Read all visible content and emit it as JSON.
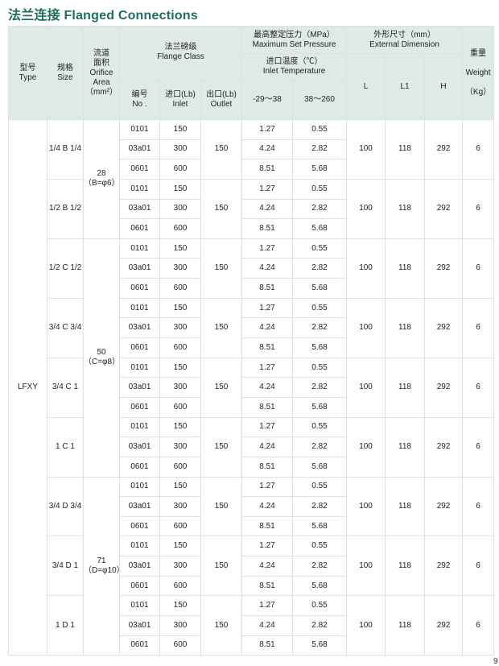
{
  "title": "法兰连接 Flanged  Connections",
  "page_number": "9",
  "header": {
    "type": [
      "型号",
      "Type"
    ],
    "size": [
      "规格",
      "Size"
    ],
    "orifice": [
      "流道",
      "面积",
      "Orifice",
      "Area",
      "（mm²）"
    ],
    "flange_class": [
      "法兰磅级",
      "Flange  Class"
    ],
    "no": [
      "编号",
      "No ."
    ],
    "inlet": [
      "进口(Lb)",
      "Inlet"
    ],
    "outlet": [
      "出口(Lb)",
      "Outlet"
    ],
    "pressure": [
      "最高整定压力（MPa）",
      "Maximum Set Pressure"
    ],
    "inlet_temp": [
      "进口温度（℃）",
      "Inlet Temperature"
    ],
    "temp1": "-29～38",
    "temp2": "38～260",
    "dimension": [
      "外形尺寸（mm）",
      "External Dimension"
    ],
    "L": "L",
    "L1": "L1",
    "H": "H",
    "weight": [
      "重量",
      "Weight",
      "（Kg）"
    ]
  },
  "type_value": "LFXY",
  "orifice_groups": [
    {
      "area": [
        "28",
        "（B=φ6）"
      ],
      "sizes": 2
    },
    {
      "area": [
        "50",
        "（C=φ8）"
      ],
      "sizes": 4
    },
    {
      "area": [
        "71",
        "（D=φ10）"
      ],
      "sizes": 3
    }
  ],
  "sizes": [
    {
      "size": "1/4 B 1/4",
      "outlet": "150",
      "L": "100",
      "L1": "118",
      "H": "292",
      "weight": "6"
    },
    {
      "size": "1/2 B 1/2",
      "outlet": "150",
      "L": "100",
      "L1": "118",
      "H": "292",
      "weight": "6"
    },
    {
      "size": "1/2 C 1/2",
      "outlet": "150",
      "L": "100",
      "L1": "118",
      "H": "292",
      "weight": "6"
    },
    {
      "size": "3/4 C 3/4",
      "outlet": "150",
      "L": "100",
      "L1": "118",
      "H": "292",
      "weight": "6"
    },
    {
      "size": "3/4 C 1",
      "outlet": "150",
      "L": "100",
      "L1": "118",
      "H": "292",
      "weight": "6"
    },
    {
      "size": "1 C 1",
      "outlet": "150",
      "L": "100",
      "L1": "118",
      "H": "292",
      "weight": "6"
    },
    {
      "size": "3/4 D 3/4",
      "outlet": "150",
      "L": "100",
      "L1": "118",
      "H": "292",
      "weight": "6"
    },
    {
      "size": "3/4 D 1",
      "outlet": "150",
      "L": "100",
      "L1": "118",
      "H": "292",
      "weight": "6"
    },
    {
      "size": "1 D 1",
      "outlet": "150",
      "L": "100",
      "L1": "118",
      "H": "292",
      "weight": "6"
    }
  ],
  "classes": [
    {
      "no": "0101",
      "inlet": "150",
      "p1": "1.27",
      "p2": "0.55"
    },
    {
      "no": "03a01",
      "inlet": "300",
      "p1": "4.24",
      "p2": "2.82"
    },
    {
      "no": "0601",
      "inlet": "600",
      "p1": "8.51",
      "p2": "5.68"
    }
  ]
}
